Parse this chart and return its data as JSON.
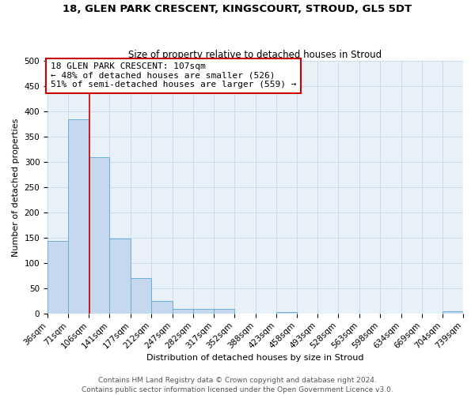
{
  "title": "18, GLEN PARK CRESCENT, KINGSCOURT, STROUD, GL5 5DT",
  "subtitle": "Size of property relative to detached houses in Stroud",
  "xlabel": "Distribution of detached houses by size in Stroud",
  "ylabel": "Number of detached properties",
  "bin_edges": [
    36,
    71,
    106,
    141,
    177,
    212,
    247,
    282,
    317,
    352,
    388,
    423,
    458,
    493,
    528,
    563,
    598,
    634,
    669,
    704,
    739
  ],
  "bar_heights": [
    143,
    384,
    309,
    149,
    70,
    24,
    9,
    9,
    9,
    0,
    0,
    3,
    0,
    0,
    0,
    0,
    0,
    0,
    0,
    4
  ],
  "bar_color": "#c5d8ed",
  "bar_edge_color": "#6aaed6",
  "vline_x": 107,
  "vline_color": "#cc0000",
  "annotation_text": "18 GLEN PARK CRESCENT: 107sqm\n← 48% of detached houses are smaller (526)\n51% of semi-detached houses are larger (559) →",
  "annotation_box_edgecolor": "#cc0000",
  "annotation_box_facecolor": "#ffffff",
  "ylim": [
    0,
    500
  ],
  "yticks": [
    0,
    50,
    100,
    150,
    200,
    250,
    300,
    350,
    400,
    450,
    500
  ],
  "grid_color": "#c8d8ec",
  "background_color": "#e8f0f8",
  "footer_line1": "Contains HM Land Registry data © Crown copyright and database right 2024.",
  "footer_line2": "Contains public sector information licensed under the Open Government Licence v3.0.",
  "title_fontsize": 9.5,
  "subtitle_fontsize": 8.5,
  "axis_label_fontsize": 8,
  "tick_fontsize": 7.5,
  "annotation_fontsize": 8,
  "footer_fontsize": 6.5
}
